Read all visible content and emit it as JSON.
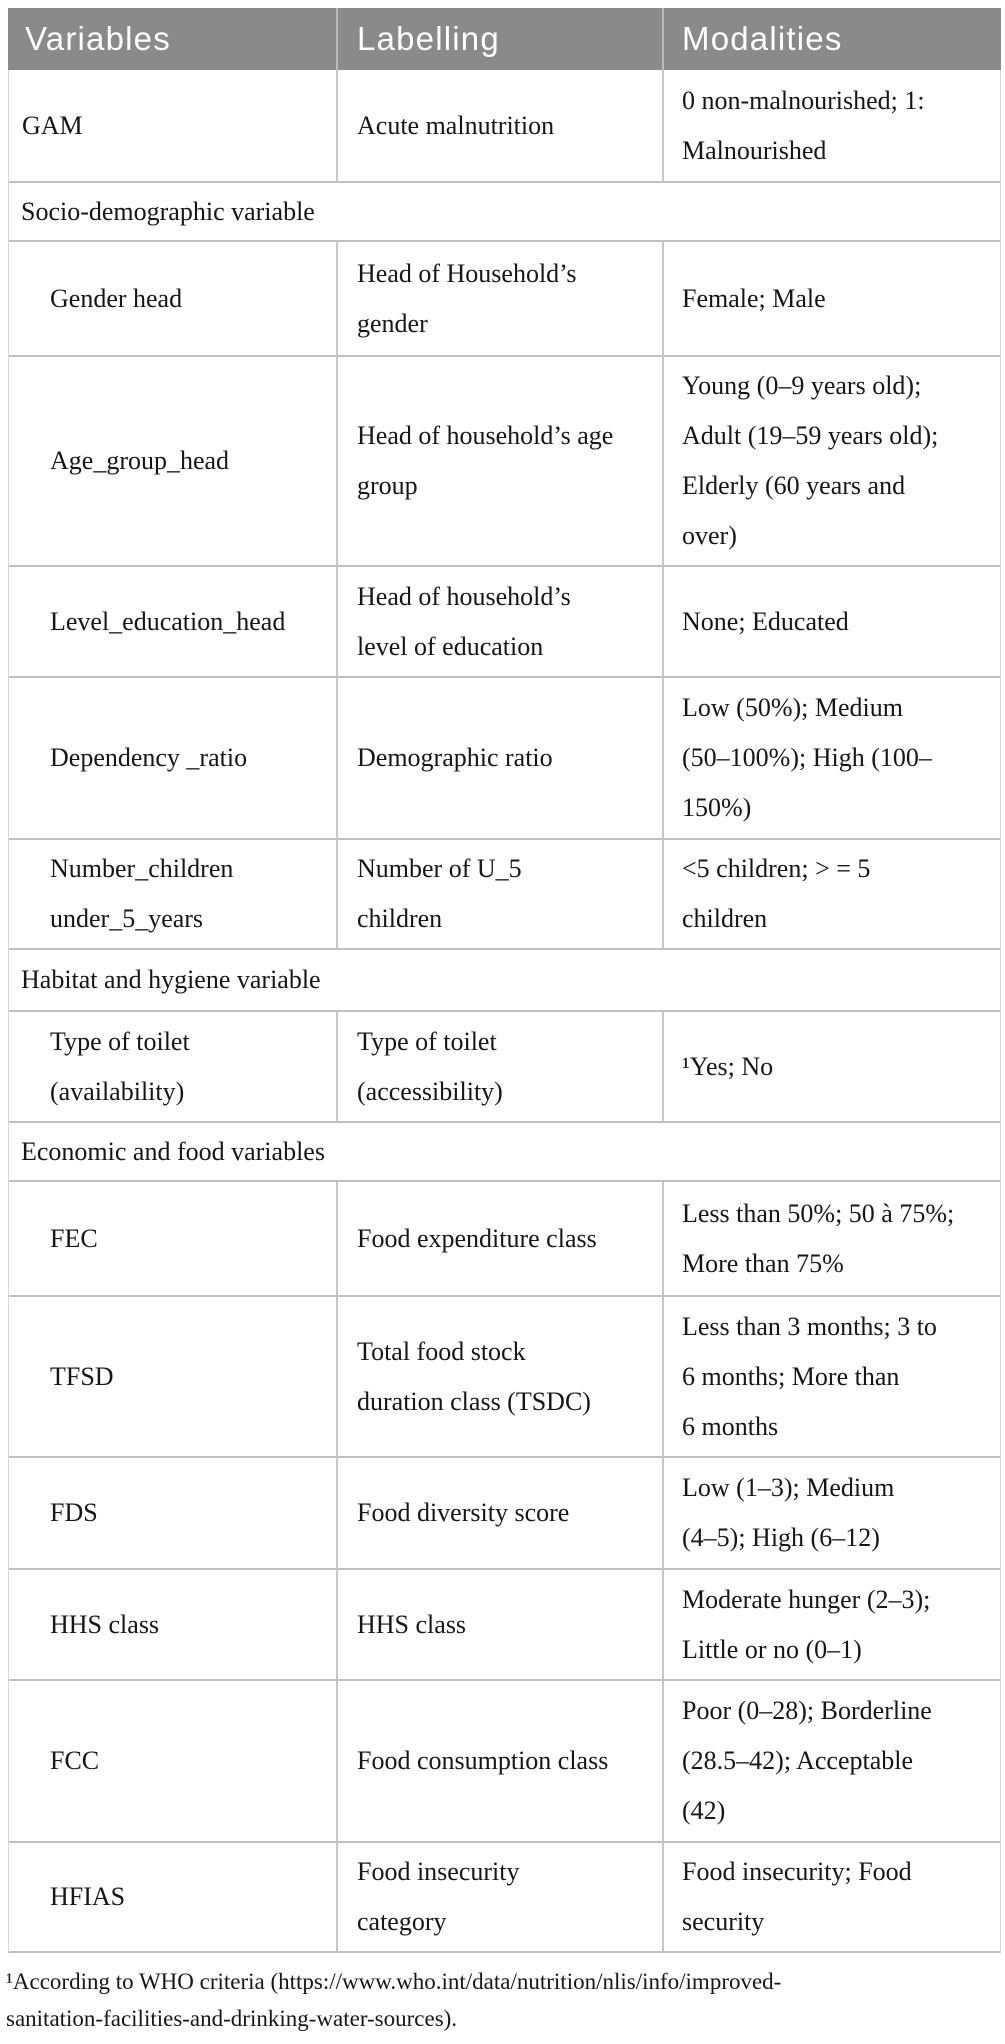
{
  "table": {
    "headers": [
      "Variables",
      "Labelling",
      "Modalities"
    ],
    "rows": [
      {
        "type": "data",
        "indent": false,
        "variable": "GAM",
        "labelling": "Acute malnutrition",
        "modalities": "0 non-malnourished; 1:\nMalnourished"
      },
      {
        "type": "section",
        "label": "Socio-demographic variable"
      },
      {
        "type": "data",
        "indent": true,
        "variable": "Gender head",
        "labelling": "Head of Household’s\ngender",
        "modalities": "Female; Male"
      },
      {
        "type": "data",
        "indent": true,
        "variable": "Age_group_head",
        "labelling": "Head of household’s age\ngroup",
        "modalities": "Young (0–9 years old);\nAdult (19–59 years old);\nElderly (60 years and\nover)"
      },
      {
        "type": "data",
        "indent": true,
        "variable": "Level_education_head",
        "labelling": "Head of household’s\nlevel of education",
        "modalities": "None; Educated"
      },
      {
        "type": "data",
        "indent": true,
        "variable": "Dependency _ratio",
        "labelling": "Demographic ratio",
        "modalities": "Low (50%); Medium\n(50–100%); High (100–\n150%)"
      },
      {
        "type": "data",
        "indent": true,
        "variable": "Number_children\nunder_5_years",
        "labelling": "Number of U_5\nchildren",
        "modalities": "<5 children; > = 5\nchildren"
      },
      {
        "type": "section",
        "label": "Habitat and hygiene variable"
      },
      {
        "type": "data",
        "indent": true,
        "variable": "Type of toilet\n(availability)",
        "labelling": "Type of toilet\n(accessibility)",
        "modalities": "¹Yes; No"
      },
      {
        "type": "section",
        "label": "Economic and food variables"
      },
      {
        "type": "data",
        "indent": true,
        "variable": "FEC",
        "labelling": "Food expenditure class",
        "modalities": "Less than 50%; 50 à 75%;\nMore than 75%"
      },
      {
        "type": "data",
        "indent": true,
        "variable": "TFSD",
        "labelling": "Total food stock\nduration class (TSDC)",
        "modalities": "Less than 3 months; 3 to\n6 months; More than\n6 months"
      },
      {
        "type": "data",
        "indent": true,
        "variable": "FDS",
        "labelling": "Food diversity score",
        "modalities": "Low (1–3); Medium\n(4–5); High (6–12)"
      },
      {
        "type": "data",
        "indent": true,
        "variable": "HHS class",
        "labelling": "HHS class",
        "modalities": "Moderate hunger (2–3);\nLittle or no (0–1)"
      },
      {
        "type": "data",
        "indent": true,
        "variable": "FCC",
        "labelling": "Food consumption class",
        "modalities": "Poor (0–28); Borderline\n(28.5–42); Acceptable\n(42)"
      },
      {
        "type": "data",
        "indent": true,
        "variable": "HFIAS",
        "labelling": "Food insecurity\ncategory",
        "modalities": "Food insecurity; Food\nsecurity"
      }
    ]
  },
  "footnote": {
    "text": "¹According to WHO criteria (https://www.who.int/data/nutrition/nlis/info/improved-\nsanitation-facilities-and-drinking-water-sources)."
  },
  "colors": {
    "header_bg": "#8a8a8a",
    "header_text": "#ffffff",
    "row_border": "#c0c0c0",
    "column_divider": "#c6c6c6",
    "body_text": "#161616"
  }
}
